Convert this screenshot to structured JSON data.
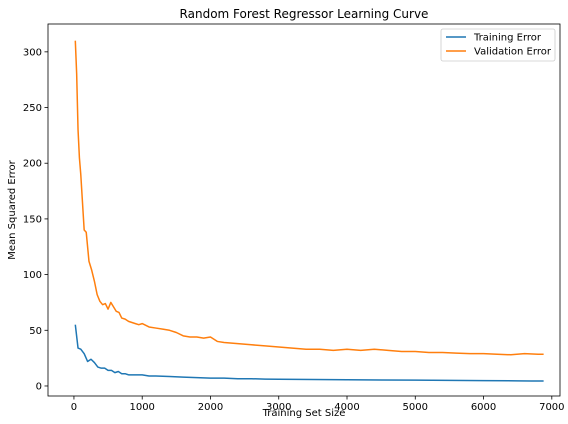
{
  "chart_data": {
    "type": "line",
    "title": "Random Forest Regressor Learning Curve",
    "xlabel": "Training Set Size",
    "ylabel": "Mean Squared Error",
    "xlim": [
      -380,
      7120
    ],
    "ylim": [
      -9,
      325
    ],
    "xticks": [
      0,
      1000,
      2000,
      3000,
      4000,
      5000,
      6000,
      7000
    ],
    "yticks": [
      0,
      50,
      100,
      150,
      200,
      250,
      300
    ],
    "grid": false,
    "legend_position": "top-right",
    "series": [
      {
        "name": "Training Error",
        "color": "#1f77b4",
        "x": [
          20,
          60,
          100,
          150,
          200,
          250,
          300,
          350,
          400,
          450,
          500,
          550,
          600,
          650,
          700,
          750,
          800,
          900,
          1000,
          1100,
          1200,
          1400,
          1600,
          1800,
          2000,
          2200,
          2400,
          2600,
          2800,
          3000,
          3500,
          4000,
          4500,
          5000,
          5500,
          6000,
          6500,
          6700,
          6880
        ],
        "y": [
          55,
          34,
          33,
          29,
          22,
          24,
          21,
          17,
          16,
          16,
          14,
          14,
          12,
          13,
          11,
          11,
          10,
          10,
          10,
          9,
          9,
          8.5,
          8,
          7.5,
          7,
          7,
          6.5,
          6.5,
          6.2,
          6,
          5.8,
          5.6,
          5.4,
          5.2,
          5.0,
          4.8,
          4.6,
          4.5,
          4.5
        ]
      },
      {
        "name": "Validation Error",
        "color": "#ff7f0e",
        "x": [
          20,
          40,
          60,
          80,
          100,
          120,
          150,
          180,
          220,
          260,
          300,
          340,
          380,
          420,
          460,
          500,
          540,
          580,
          620,
          660,
          700,
          750,
          800,
          850,
          900,
          950,
          1000,
          1100,
          1200,
          1300,
          1400,
          1500,
          1600,
          1700,
          1800,
          1900,
          2000,
          2100,
          2200,
          2400,
          2600,
          2800,
          3000,
          3200,
          3400,
          3600,
          3800,
          4000,
          4200,
          4400,
          4600,
          4800,
          5000,
          5200,
          5400,
          5600,
          5800,
          6000,
          6200,
          6400,
          6600,
          6800,
          6880
        ],
        "y": [
          310,
          280,
          230,
          205,
          190,
          170,
          140,
          138,
          112,
          104,
          94,
          82,
          76,
          73,
          74,
          69,
          75,
          71,
          67,
          66,
          61,
          60,
          58,
          57,
          56,
          55,
          56,
          53,
          52,
          51,
          50,
          48,
          45,
          44,
          44,
          43,
          44,
          40,
          39,
          38,
          37,
          36,
          35,
          34,
          33,
          33,
          32,
          33,
          32,
          33,
          32,
          31,
          31,
          30,
          30,
          29.5,
          29,
          29,
          28.5,
          28,
          29,
          28.5,
          28.5
        ]
      }
    ]
  }
}
